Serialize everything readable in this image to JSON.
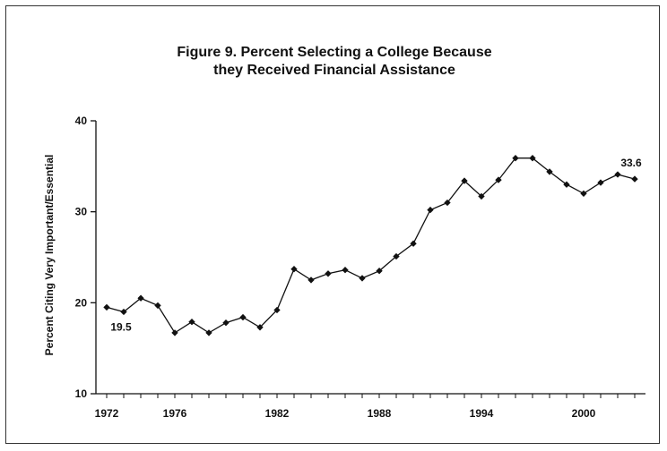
{
  "chart_data": {
    "type": "line",
    "title_lines": [
      "Figure 9. Percent Selecting a College Because",
      "they Received Financial Assistance"
    ],
    "xlabel": "",
    "ylabel": "Percent Citing Very Important/Essential",
    "x": [
      1971,
      1972,
      1973,
      1974,
      1975,
      1976,
      1977,
      1978,
      1979,
      1980,
      1981,
      1982,
      1983,
      1984,
      1985,
      1986,
      1987,
      1988,
      1989,
      1990,
      1991,
      1992,
      1993,
      1994,
      1995,
      1996,
      1997,
      1998,
      1999,
      2000,
      2001,
      2002
    ],
    "series": [
      {
        "name": "",
        "values": [
          19.5,
          19.0,
          20.5,
          19.7,
          16.7,
          17.9,
          16.7,
          17.8,
          18.4,
          17.3,
          19.2,
          23.7,
          22.5,
          23.2,
          23.6,
          22.7,
          23.5,
          25.1,
          26.5,
          30.2,
          31.0,
          33.4,
          31.7,
          33.5,
          35.9,
          35.9,
          34.4,
          33.0,
          32.0,
          33.2,
          34.1,
          33.6
        ]
      }
    ],
    "x_tick_labels": [
      "1972",
      "1976",
      "1982",
      "1988",
      "1994",
      "2000"
    ],
    "x_tick_values": [
      1971,
      1975,
      1981,
      1987,
      1993,
      1999
    ],
    "y_ticks": [
      10,
      20,
      30,
      40
    ],
    "ylim": [
      10,
      40
    ],
    "xlim": [
      1971,
      2002
    ],
    "grid": false,
    "annotations": [
      {
        "text": "19.5",
        "x": 1971,
        "y": 19.5,
        "position": "below"
      },
      {
        "text": "33.6",
        "x": 2002,
        "y": 33.6,
        "position": "above"
      }
    ],
    "line_color": "#111111"
  }
}
